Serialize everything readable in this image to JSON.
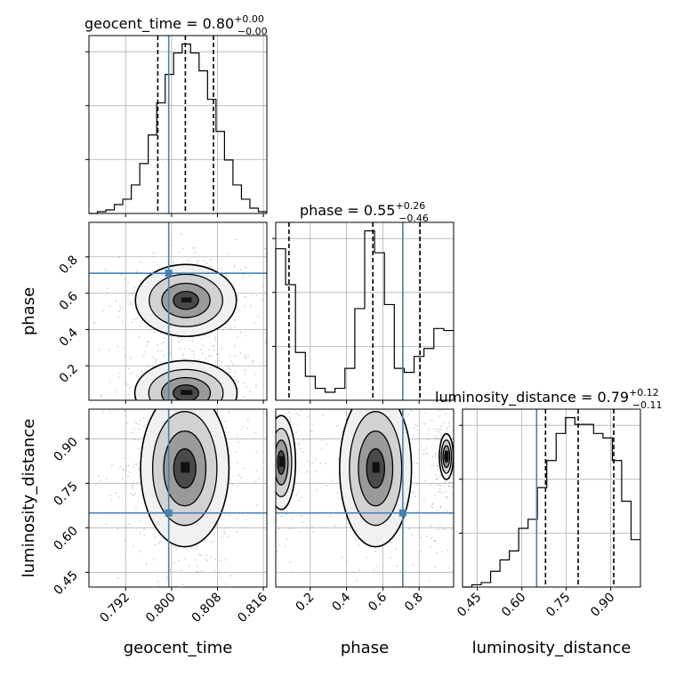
{
  "chart_data": {
    "type": "corner",
    "parameters": [
      "geocent_time",
      "phase",
      "luminosity_distance"
    ],
    "truths": {
      "geocent_time": 0.7995,
      "phase": 0.71,
      "luminosity_distance": 0.65
    },
    "titles": {
      "geocent_time": {
        "label": "geocent_time = 0.80",
        "sup": "+0.00",
        "sub": "−0.00"
      },
      "phase": {
        "label": "phase = 0.55",
        "sup": "+0.26",
        "sub": "−0.46"
      },
      "luminosity_distance": {
        "label": "luminosity_distance = 0.79",
        "sup": "+0.12",
        "sub": "−0.11"
      }
    },
    "ranges": {
      "geocent_time": [
        0.7856,
        0.8166
      ],
      "phase": [
        0.01,
        0.99
      ],
      "luminosity_distance": [
        0.4,
        1.0
      ]
    },
    "ticks": {
      "geocent_time": {
        "values": [
          0.792,
          0.8,
          0.808,
          0.816
        ],
        "labels": [
          "0.792",
          "0.800",
          "0.808",
          "0.816"
        ]
      },
      "phase": {
        "values": [
          0.2,
          0.4,
          0.6,
          0.8
        ],
        "labels": [
          "0.2",
          "0.4",
          "0.6",
          "0.8"
        ]
      },
      "luminosity_distance": {
        "values": [
          0.45,
          0.6,
          0.75,
          0.9
        ],
        "labels": [
          "0.45",
          "0.60",
          "0.75",
          "0.90"
        ]
      }
    },
    "quantiles": {
      "geocent_time": [
        0.7976,
        0.8024,
        0.8073
      ],
      "phase": [
        0.083,
        0.545,
        0.805
      ],
      "luminosity_distance": [
        0.68,
        0.79,
        0.91
      ]
    },
    "histograms": {
      "geocent_time": [
        0,
        1,
        2,
        5,
        8,
        16,
        28,
        44,
        62,
        78,
        90,
        95,
        90,
        80,
        64,
        46,
        30,
        16,
        8,
        3,
        1
      ],
      "phase": [
        76,
        58,
        24,
        12,
        6,
        4,
        6,
        16,
        46,
        85,
        74,
        48,
        16,
        14,
        22,
        26,
        36,
        35
      ],
      "luminosity_distance": [
        0,
        1,
        2,
        7,
        12,
        16,
        26,
        30,
        44,
        56,
        68,
        75,
        72,
        72,
        68,
        66,
        56,
        38,
        21
      ]
    },
    "grid": true,
    "color_truth": "#4682b4",
    "color_hist": "#000000",
    "color_grid": "#b0b0b0",
    "color_scatter": "#9a9a9a"
  }
}
